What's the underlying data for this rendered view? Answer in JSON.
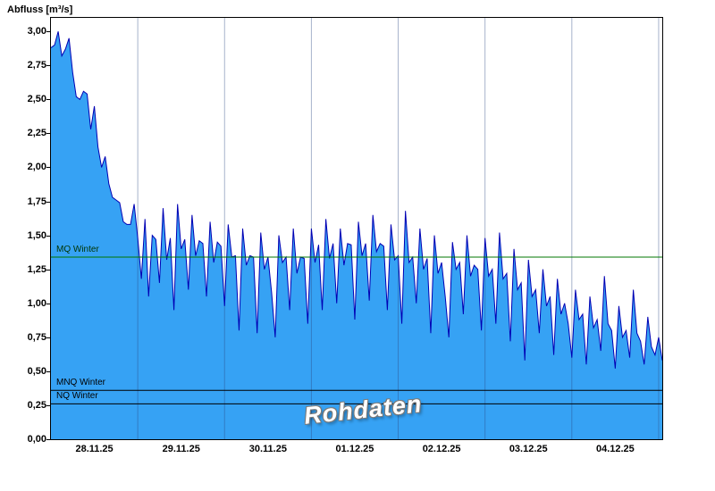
{
  "title": "Abfluss [m³/s]",
  "chart_data": {
    "type": "area",
    "title": "Abfluss [m³/s]",
    "ylabel": "Abfluss [m³/s]",
    "xlabel": "",
    "ylim": [
      0,
      3.1
    ],
    "grid": "vertical-day-lines",
    "grid_color": "rgba(45,75,130,0.42)",
    "legend_position": "none",
    "watermark": "Rohdaten",
    "total_hours": 169,
    "x_tick_labels": [
      "28.11.25",
      "29.11.25",
      "30.11.25",
      "01.12.25",
      "02.12.25",
      "03.12.25",
      "04.12.25"
    ],
    "x_tick_hours": [
      12,
      36,
      60,
      84,
      108,
      132,
      156
    ],
    "day_boundary_hours": [
      24,
      48,
      72,
      96,
      120,
      144,
      168
    ],
    "y_ticks": [
      {
        "value": 0.0,
        "label": "0,00"
      },
      {
        "value": 0.25,
        "label": "0,25"
      },
      {
        "value": 0.5,
        "label": "0,50"
      },
      {
        "value": 0.75,
        "label": "0,75"
      },
      {
        "value": 1.0,
        "label": "1,00"
      },
      {
        "value": 1.25,
        "label": "1,25"
      },
      {
        "value": 1.5,
        "label": "1,50"
      },
      {
        "value": 1.75,
        "label": "1,75"
      },
      {
        "value": 2.0,
        "label": "2,00"
      },
      {
        "value": 2.25,
        "label": "2,25"
      },
      {
        "value": 2.5,
        "label": "2,50"
      },
      {
        "value": 2.75,
        "label": "2,75"
      },
      {
        "value": 3.0,
        "label": "3,00"
      }
    ],
    "ref_lines": [
      {
        "label": "MQ Winter",
        "value": 1.34,
        "color": "#007700",
        "label_color": "#003300"
      },
      {
        "label": "MNQ Winter",
        "value": 0.36,
        "color": "#000000",
        "label_color": "#000000"
      },
      {
        "label": "NQ Winter",
        "value": 0.26,
        "color": "#000000",
        "label_color": "#000000"
      }
    ],
    "series": [
      {
        "name": "Abfluss Rohdaten",
        "fill_color": "#36a2f4",
        "line_color": "#0000b4",
        "x_start_label": "28.11.25 00:00",
        "x_step_hours": 1,
        "values": [
          2.88,
          2.9,
          3.0,
          2.82,
          2.87,
          2.95,
          2.7,
          2.52,
          2.5,
          2.56,
          2.54,
          2.28,
          2.45,
          2.15,
          2.0,
          2.08,
          1.88,
          1.78,
          1.76,
          1.74,
          1.6,
          1.58,
          1.58,
          1.73,
          1.48,
          1.18,
          1.62,
          1.05,
          1.5,
          1.47,
          1.15,
          1.7,
          1.32,
          1.48,
          0.95,
          1.73,
          1.4,
          1.47,
          1.1,
          1.65,
          1.35,
          1.46,
          1.44,
          1.05,
          1.6,
          1.3,
          1.45,
          1.42,
          0.98,
          1.58,
          1.34,
          1.35,
          0.8,
          1.55,
          1.28,
          1.35,
          1.34,
          0.78,
          1.52,
          1.25,
          1.34,
          1.08,
          0.75,
          1.5,
          1.3,
          1.34,
          0.95,
          1.55,
          1.22,
          1.34,
          1.33,
          0.85,
          1.55,
          1.3,
          1.43,
          0.95,
          1.62,
          1.33,
          1.44,
          1.0,
          1.55,
          1.28,
          1.44,
          1.43,
          0.88,
          1.6,
          1.35,
          1.44,
          1.02,
          1.65,
          1.38,
          1.44,
          1.42,
          0.95,
          1.58,
          1.32,
          1.35,
          0.85,
          1.68,
          1.3,
          1.34,
          1.0,
          1.55,
          1.25,
          1.33,
          0.78,
          1.5,
          1.22,
          1.3,
          1.05,
          0.75,
          1.45,
          1.25,
          1.3,
          0.92,
          1.5,
          1.2,
          1.28,
          1.25,
          0.8,
          1.48,
          1.2,
          1.25,
          0.85,
          1.52,
          1.18,
          1.22,
          0.72,
          1.4,
          1.1,
          1.15,
          0.58,
          1.32,
          1.05,
          1.1,
          0.78,
          1.25,
          0.98,
          1.05,
          0.62,
          1.18,
          0.92,
          1.0,
          0.85,
          0.6,
          1.1,
          0.88,
          0.92,
          0.55,
          1.05,
          0.82,
          0.88,
          0.65,
          1.2,
          0.85,
          0.8,
          0.52,
          0.98,
          0.75,
          0.8,
          0.6,
          1.1,
          0.78,
          0.72,
          0.55,
          0.9,
          0.68,
          0.62,
          0.75,
          0.58
        ]
      }
    ]
  }
}
